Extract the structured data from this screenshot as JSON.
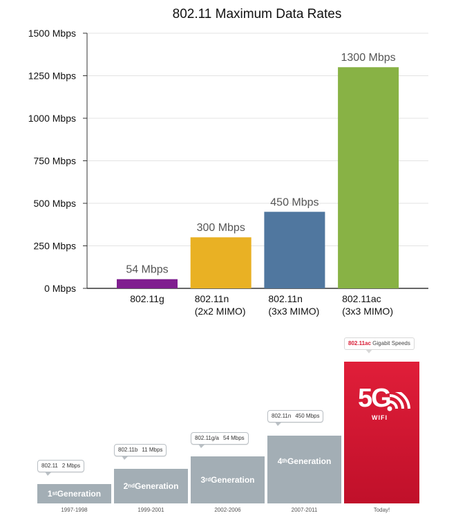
{
  "chart_data": {
    "type": "bar",
    "title": "802.11 Maximum Data Rates",
    "categories": [
      [
        "802.11g"
      ],
      [
        "802.11n",
        "(2x2 MIMO)"
      ],
      [
        "802.11n",
        "(3x3 MIMO)"
      ],
      [
        "802.11ac",
        "(3x3 MIMO)"
      ]
    ],
    "values": [
      54,
      300,
      450,
      1300
    ],
    "value_labels": [
      "54 Mbps",
      "300 Mbps",
      "450 Mbps",
      "1300 Mbps"
    ],
    "colors": [
      "#7f1f8f",
      "#e9b124",
      "#50779f",
      "#88b245"
    ],
    "yticks": [
      0,
      250,
      500,
      750,
      1000,
      1250,
      1500
    ],
    "ytick_labels": [
      "0 Mbps",
      "250 Mbps",
      "500 Mbps",
      "750 Mbps",
      "1000 Mbps",
      "1250 Mbps",
      "1500 Mbps"
    ],
    "ylim": [
      0,
      1500
    ],
    "grid": true,
    "xlabel": "",
    "ylabel": ""
  },
  "generations": [
    {
      "gen_num": "1",
      "gen_sup": "st",
      "gen_word": "Generation",
      "bubble_std": "802.11",
      "bubble_rate": "2 Mbps",
      "years": "1997-1998"
    },
    {
      "gen_num": "2",
      "gen_sup": "nd",
      "gen_word": "Generation",
      "bubble_std": "802.11b",
      "bubble_rate": "11 Mbps",
      "years": "1999-2001"
    },
    {
      "gen_num": "3",
      "gen_sup": "rd",
      "gen_word": "Generation",
      "bubble_std": "802.11g/a",
      "bubble_rate": "54 Mbps",
      "years": "2002-2006"
    },
    {
      "gen_num": "4",
      "gen_sup": "th",
      "gen_word": "Generation",
      "bubble_std": "802.11n",
      "bubble_rate": "450 Mbps",
      "years": "2007-2011"
    }
  ],
  "today": {
    "bubble_std": "802.11ac",
    "bubble_rate": "Gigabit Speeds",
    "logo_main": "5G",
    "logo_sub": "WIFI",
    "years": "Today!",
    "color": "#d81b35"
  },
  "gen_block_color": "#a3aeb5"
}
